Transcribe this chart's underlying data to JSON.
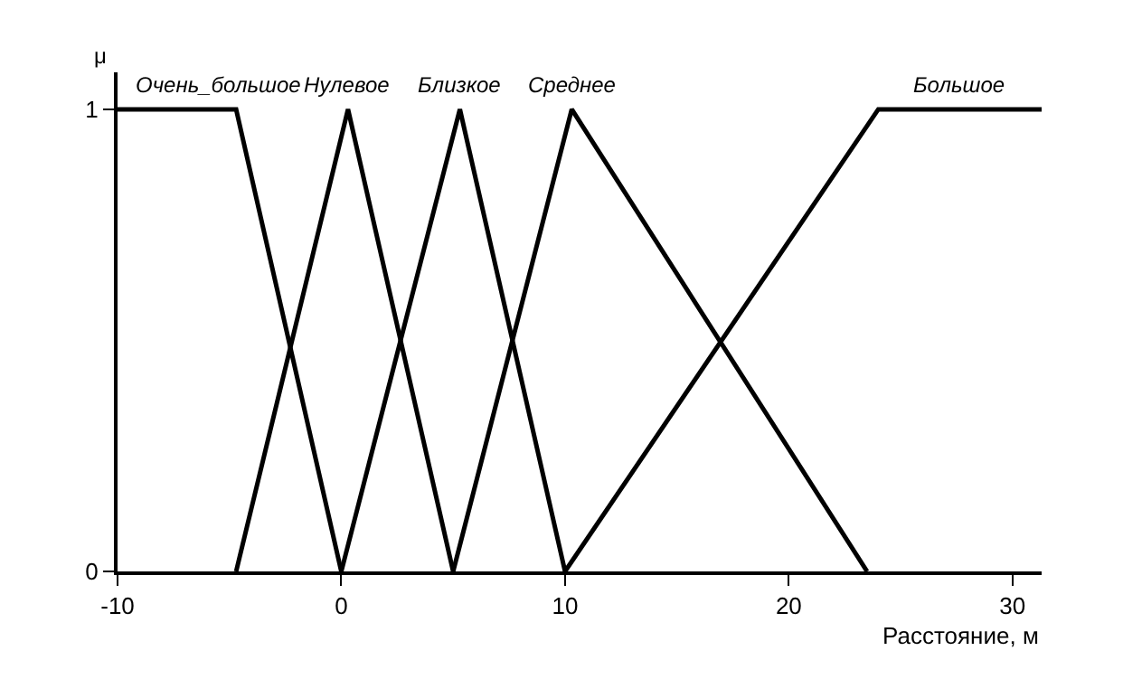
{
  "chart_data": {
    "type": "line",
    "xlabel": "Расстояние, м",
    "ylabel": "μ",
    "series": [
      {
        "name": "Очень_большое",
        "color": "#000000",
        "x": [
          -10,
          -4.7,
          0
        ],
        "values": [
          1,
          1,
          0
        ]
      },
      {
        "name": "Нулевое",
        "color": "#000000",
        "x": [
          -4.7,
          0.3,
          5
        ],
        "values": [
          0,
          1,
          0
        ]
      },
      {
        "name": "Близкое",
        "color": "#000000",
        "x": [
          0,
          5.3,
          10
        ],
        "values": [
          0,
          1,
          0
        ]
      },
      {
        "name": "Среднее",
        "color": "#000000",
        "x": [
          5,
          10.3,
          23.5
        ],
        "values": [
          0,
          1,
          0
        ]
      },
      {
        "name": "Большое",
        "color": "#000000",
        "x": [
          10,
          24,
          31.3
        ],
        "values": [
          0,
          1,
          1
        ]
      }
    ],
    "xlim": [
      -10,
      31.3
    ],
    "xticks": [
      -10,
      0,
      10,
      20,
      30
    ],
    "ylim": [
      0,
      1.08
    ],
    "yticks": [
      0,
      1
    ],
    "legend": false,
    "marker": "none",
    "line_style": "solid"
  }
}
